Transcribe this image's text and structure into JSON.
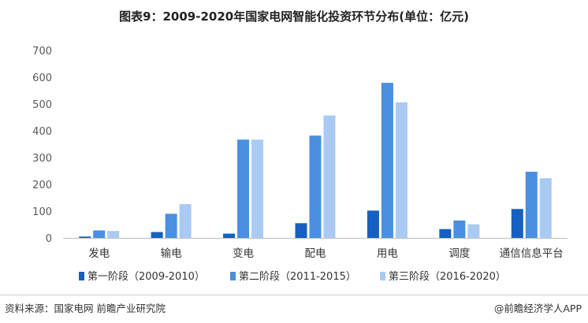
{
  "title": "图表9：2009-2020年国家电网智能化投资环节分布(单位：亿元)",
  "source": "资料来源：国家电网 前瞻产业研究院",
  "brand": "@前瞻经济学人APP",
  "colors": {
    "series1": "#1560c0",
    "series2": "#4a8fe0",
    "series3": "#a9cbf3",
    "axis": "#bfbfbf",
    "text": "#595959"
  },
  "chart_data": {
    "type": "bar",
    "title": "图表9：2009-2020年国家电网智能化投资环节分布(单位：亿元)",
    "categories": [
      "发电",
      "输电",
      "变电",
      "配电",
      "用电",
      "调度",
      "通信信息平台"
    ],
    "series": [
      {
        "name": "第一阶段（2009-2010）",
        "values": [
          5,
          22,
          16,
          55,
          102,
          33,
          108
        ]
      },
      {
        "name": "第二阶段（2011-2015）",
        "values": [
          28,
          90,
          367,
          382,
          579,
          65,
          247
        ]
      },
      {
        "name": "第三阶段（2016-2020）",
        "values": [
          26,
          126,
          367,
          457,
          506,
          51,
          223
        ]
      }
    ],
    "yticks": [
      "0",
      "100",
      "200",
      "300",
      "400",
      "500",
      "600",
      "700"
    ],
    "ylim": [
      0,
      700
    ],
    "grid": false,
    "legend": "bottom"
  }
}
